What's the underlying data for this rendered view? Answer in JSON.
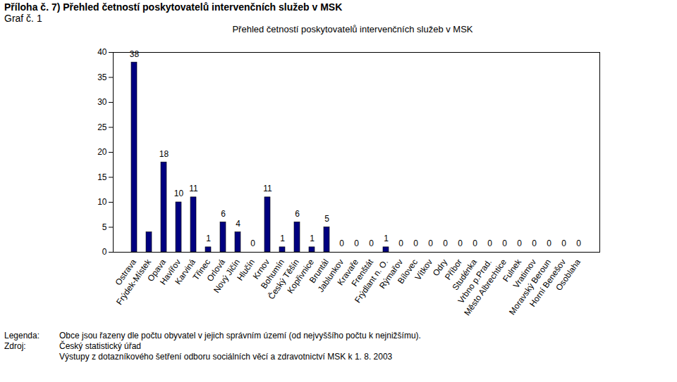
{
  "chart_data": {
    "type": "bar",
    "header": "Příloha č. 7) Přehled četností poskytovatelů intervenčních služeb v MSK",
    "subheader": "Graf č. 1",
    "title": "Přehled četností poskytovatelů intervenčních služeb v MSK",
    "categories": [
      "Ostrava",
      "Frýdek-Místek",
      "Opava",
      "Havířov",
      "Karviná",
      "Třinec",
      "Orlová",
      "Nový Jičín",
      "Hlučín",
      "Krnov",
      "Bohumín",
      "Český Těšín",
      "Kopřivnice",
      "Bruntál",
      "Jablunkov",
      "Kravaře",
      "Frenštát",
      "Frýdlant n. O.",
      "Rýmařov",
      "Bílovec",
      "Vítkov",
      "Odry",
      "Příbor",
      "Studénka",
      "Vrbno p.Prad.",
      "Město Albrechtice",
      "Fulnek",
      "Vratimov",
      "Moravský Beroun",
      "Horní Benešov",
      "Osoblaha"
    ],
    "values": [
      38,
      4,
      18,
      10,
      11,
      1,
      6,
      4,
      0,
      11,
      1,
      6,
      1,
      5,
      0,
      0,
      0,
      1,
      0,
      0,
      0,
      0,
      0,
      0,
      0,
      0,
      0,
      0,
      0,
      0,
      0
    ],
    "value_labels": [
      "38",
      null,
      "18",
      "10",
      "11",
      "1",
      "6",
      "4",
      "0",
      "11",
      "1",
      "6",
      "1",
      "5",
      "0",
      "0",
      "0",
      "1",
      "0",
      "0",
      "0",
      "0",
      "0",
      "0",
      "0",
      "0",
      "0",
      "0",
      "0",
      "0",
      "0"
    ],
    "data_labels": true,
    "color": "#000080",
    "ylim": [
      0,
      40
    ],
    "yticks": [
      0,
      5,
      10,
      15,
      20,
      25,
      30,
      35,
      40
    ],
    "grid": false,
    "notes": [
      {
        "label": "Legenda:",
        "text": "Obce jsou řazeny dle počtu obyvatel v jejich správním území (od nejvyššího počtu k nejnižšímu)."
      },
      {
        "label": "Zdroj:",
        "text": "Český statistický úřad"
      },
      {
        "label": null,
        "text": "Výstupy z dotazníkového šetření odboru sociálních věcí a zdravotnictví MSK k 1. 8. 2003"
      }
    ]
  }
}
